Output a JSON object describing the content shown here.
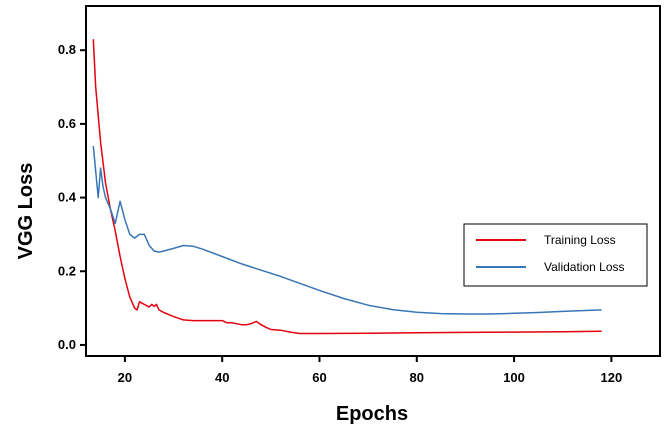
{
  "chart_data": {
    "type": "line",
    "xlabel": "Epochs",
    "ylabel": "VGG Loss",
    "xlim": [
      12,
      130
    ],
    "ylim": [
      -0.03,
      0.92
    ],
    "xticks": [
      20,
      40,
      60,
      80,
      100,
      120
    ],
    "yticks": [
      0.0,
      0.2,
      0.4,
      0.6,
      0.8
    ],
    "xtick_labels": [
      "20",
      "40",
      "60",
      "80",
      "100",
      "120"
    ],
    "ytick_labels": [
      "0.0",
      "0.2",
      "0.4",
      "0.6",
      "0.8"
    ],
    "grid": false,
    "legend_position": "right",
    "series": [
      {
        "name": "Training Loss",
        "color": "#e3000f",
        "x": [
          13.5,
          14,
          15,
          16,
          17,
          18,
          19,
          20,
          21,
          22,
          22.5,
          23,
          24,
          25,
          25.5,
          26,
          26.5,
          27,
          28,
          30,
          32,
          34,
          36,
          38,
          40,
          41,
          42,
          44,
          45,
          46,
          47,
          48,
          49,
          50,
          52,
          54,
          56,
          58,
          60,
          70,
          80,
          90,
          100,
          110,
          118
        ],
        "y": [
          0.83,
          0.7,
          0.55,
          0.44,
          0.37,
          0.31,
          0.24,
          0.18,
          0.13,
          0.1,
          0.095,
          0.117,
          0.11,
          0.103,
          0.11,
          0.105,
          0.11,
          0.095,
          0.088,
          0.077,
          0.068,
          0.066,
          0.066,
          0.066,
          0.066,
          0.06,
          0.06,
          0.055,
          0.055,
          0.058,
          0.064,
          0.055,
          0.048,
          0.042,
          0.04,
          0.035,
          0.031,
          0.031,
          0.031,
          0.032,
          0.033,
          0.034,
          0.035,
          0.036,
          0.037
        ]
      },
      {
        "name": "Validation Loss",
        "color": "#3876b8",
        "x": [
          13.5,
          14.5,
          15,
          15.5,
          16,
          17,
          18,
          19,
          20,
          21,
          22,
          23,
          24,
          25,
          26,
          27,
          28,
          30,
          32,
          34,
          36,
          40,
          44,
          48,
          52,
          56,
          60,
          65,
          70,
          75,
          80,
          85,
          90,
          95,
          100,
          105,
          110,
          118
        ],
        "y": [
          0.54,
          0.4,
          0.48,
          0.43,
          0.4,
          0.37,
          0.33,
          0.39,
          0.34,
          0.3,
          0.29,
          0.3,
          0.3,
          0.27,
          0.255,
          0.252,
          0.255,
          0.262,
          0.27,
          0.268,
          0.26,
          0.24,
          0.22,
          0.203,
          0.186,
          0.167,
          0.148,
          0.126,
          0.108,
          0.096,
          0.089,
          0.085,
          0.084,
          0.084,
          0.086,
          0.088,
          0.091,
          0.095
        ]
      }
    ]
  }
}
